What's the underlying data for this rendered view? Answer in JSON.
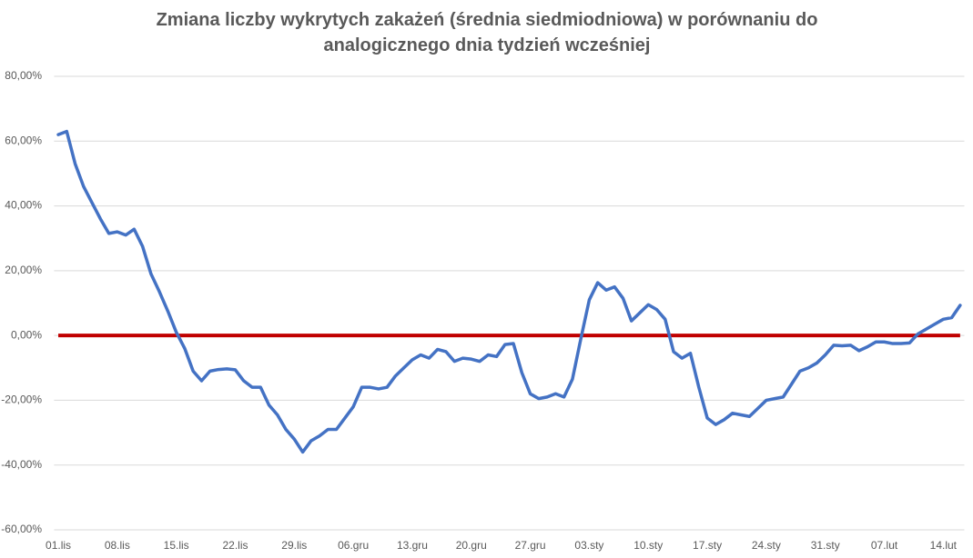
{
  "chart_data": {
    "type": "line",
    "title": "Zmiana liczby wykrytych zakażeń (średnia siedmiodniowa) w porównaniu do analogicznego dnia tydzień wcześniej",
    "categories": [
      "01.lis",
      null,
      null,
      null,
      null,
      null,
      null,
      "08.lis",
      null,
      null,
      null,
      null,
      null,
      null,
      "15.lis",
      null,
      null,
      null,
      null,
      null,
      null,
      "22.lis",
      null,
      null,
      null,
      null,
      null,
      null,
      "29.lis",
      null,
      null,
      null,
      null,
      null,
      null,
      "06.gru",
      null,
      null,
      null,
      null,
      null,
      null,
      "13.gru",
      null,
      null,
      null,
      null,
      null,
      null,
      "20.gru",
      null,
      null,
      null,
      null,
      null,
      null,
      "27.gru",
      null,
      null,
      null,
      null,
      null,
      null,
      "03.sty",
      null,
      null,
      null,
      null,
      null,
      null,
      "10.sty",
      null,
      null,
      null,
      null,
      null,
      null,
      "17.sty",
      null,
      null,
      null,
      null,
      null,
      null,
      "24.sty",
      null,
      null,
      null,
      null,
      null,
      null,
      "31.sty",
      null,
      null,
      null,
      null,
      null,
      null,
      "07.lut",
      null,
      null,
      null,
      null,
      null,
      null,
      "14.lut",
      null,
      null
    ],
    "series": [
      {
        "color": "#4472c4",
        "values": [
          62,
          63,
          53,
          46,
          41,
          36,
          31.5,
          32,
          31,
          32.8,
          27.5,
          19,
          13.5,
          7.5,
          1,
          -4,
          -11,
          -14,
          -11,
          -10.5,
          -10.3,
          -10.6,
          -14,
          -16,
          -16,
          -21.5,
          -24.5,
          -29,
          -32,
          -36,
          -32.5,
          -31,
          -29,
          -29,
          -25.5,
          -22,
          -16,
          -16,
          -16.5,
          -16,
          -12.5,
          -10,
          -7.5,
          -6,
          -7,
          -4.3,
          -5,
          -8,
          -7,
          -7.3,
          -8,
          -6,
          -6.5,
          -2.8,
          -2.5,
          -11.5,
          -18,
          -19.5,
          -19,
          -18,
          -19,
          -13.5,
          -1,
          11,
          16.3,
          14,
          15,
          11.5,
          4.5,
          7,
          9.5,
          8,
          5,
          -5,
          -7,
          -5.5,
          -16,
          -25.5,
          -27.5,
          -26,
          -24,
          -24.5,
          -25,
          -22.5,
          -20,
          -19.5,
          -19,
          -15,
          -11,
          -10,
          -8.5,
          -6,
          -3,
          -3.2,
          -3,
          -4.7,
          -3.5,
          -2,
          -2,
          -2.5,
          -2.5,
          -2.3,
          0.5,
          2,
          3.5,
          5,
          5.5,
          9.3
        ]
      }
    ],
    "reference_line": {
      "value": 0,
      "color": "#c00000"
    },
    "ylim": [
      -60,
      80
    ],
    "yticks": [
      {
        "value": -60,
        "label": "-60,00%"
      },
      {
        "value": -40,
        "label": "-40,00%"
      },
      {
        "value": -20,
        "label": "-20,00%"
      },
      {
        "value": 0,
        "label": "0,00%"
      },
      {
        "value": 20,
        "label": "20,00%"
      },
      {
        "value": 40,
        "label": "40,00%"
      },
      {
        "value": 60,
        "label": "60,00%"
      },
      {
        "value": 80,
        "label": "80,00%"
      }
    ],
    "grid": true
  }
}
